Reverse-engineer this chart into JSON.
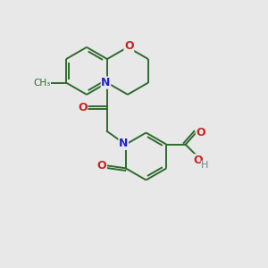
{
  "bg_color": "#e8e8e8",
  "bond_color": "#2d6b2d",
  "N_color": "#2222cc",
  "O_color": "#cc2222",
  "H_color": "#6a8a8a",
  "line_width": 1.4,
  "figsize": [
    3.0,
    3.0
  ],
  "dpi": 100,
  "xlim": [
    0,
    10
  ],
  "ylim": [
    0,
    10
  ]
}
